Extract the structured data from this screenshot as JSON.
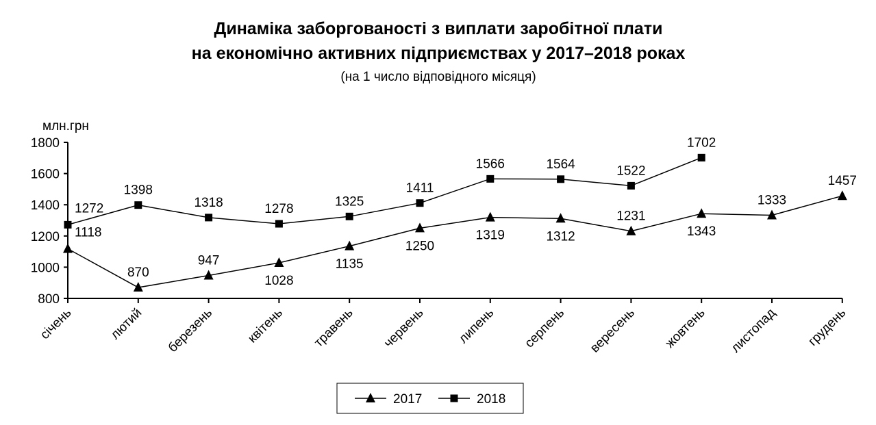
{
  "chart_data": {
    "type": "line",
    "title": "Динаміка заборгованості з виплати заробітної плати",
    "title_line2": "на економічно активних підприємствах у 2017–2018 роках",
    "subtitle": "(на 1 число відповідного місяця)",
    "ylabel": "млн.грн",
    "ylim": [
      800,
      1800
    ],
    "yticks": [
      "800",
      "1000",
      "1200",
      "1400",
      "1600",
      "1800"
    ],
    "grid": false,
    "legend_position": "bottom",
    "categories": [
      "січень",
      "лютий",
      "березень",
      "квітень",
      "травень",
      "червень",
      "липень",
      "серпень",
      "вересень",
      "жовтень",
      "листопад",
      "грудень"
    ],
    "series": [
      {
        "name": "2017",
        "marker": "triangle",
        "color": "#000000",
        "values": [
          1118,
          870,
          947,
          1028,
          1135,
          1250,
          1319,
          1312,
          1231,
          1343,
          1333,
          1457
        ]
      },
      {
        "name": "2018",
        "marker": "square",
        "color": "#000000",
        "values": [
          1272,
          1398,
          1318,
          1278,
          1325,
          1411,
          1566,
          1564,
          1522,
          1702,
          null,
          null
        ]
      }
    ]
  }
}
